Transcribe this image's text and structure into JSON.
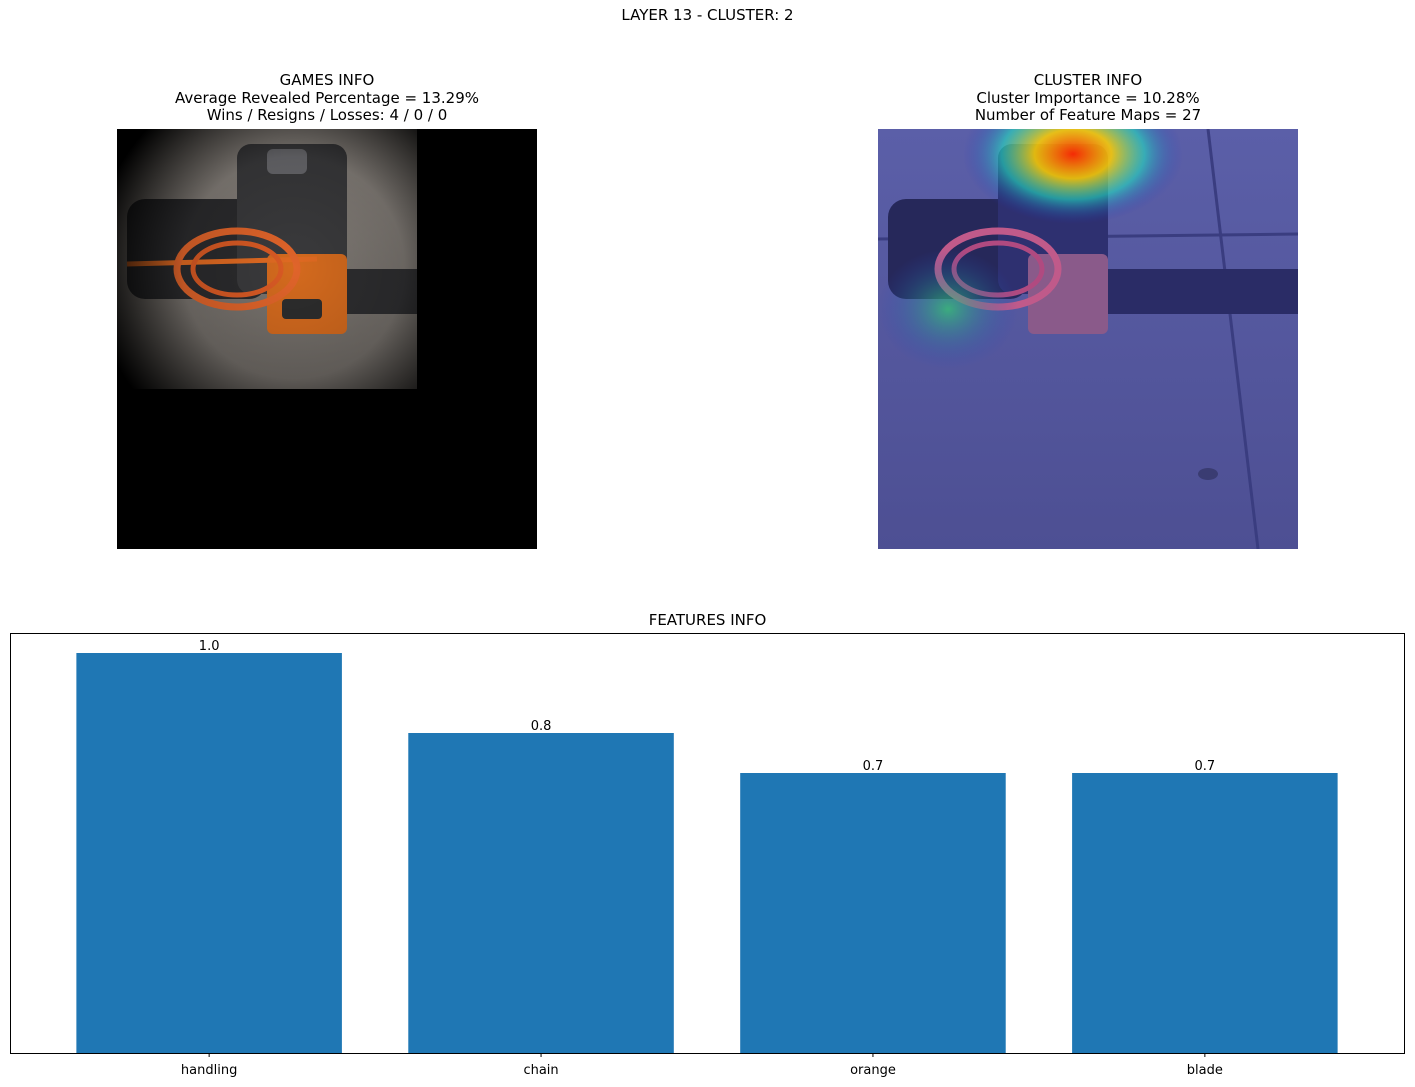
{
  "figure": {
    "title": "LAYER 13 - CLUSTER: 2"
  },
  "games_info": {
    "title": "GAMES INFO",
    "revealed": "Average Revealed Percentage = 13.29%",
    "record": "Wins / Resigns / Losses: 4 / 0 / 0"
  },
  "cluster_info": {
    "title": "CLUSTER INFO",
    "importance": "Cluster Importance = 10.28%",
    "feature_maps": "Number of Feature Maps = 27"
  },
  "chart_data": {
    "type": "bar",
    "title": "FEATURES INFO",
    "categories": [
      "handling",
      "chain",
      "orange",
      "blade"
    ],
    "values": [
      1.0,
      0.8,
      0.7,
      0.7
    ],
    "data_labels": [
      "1.0",
      "0.8",
      "0.7",
      "0.7"
    ],
    "ylim": [
      0,
      1.0
    ],
    "bar_color": "#1f77b4",
    "grid": false,
    "yticks_visible": false
  }
}
